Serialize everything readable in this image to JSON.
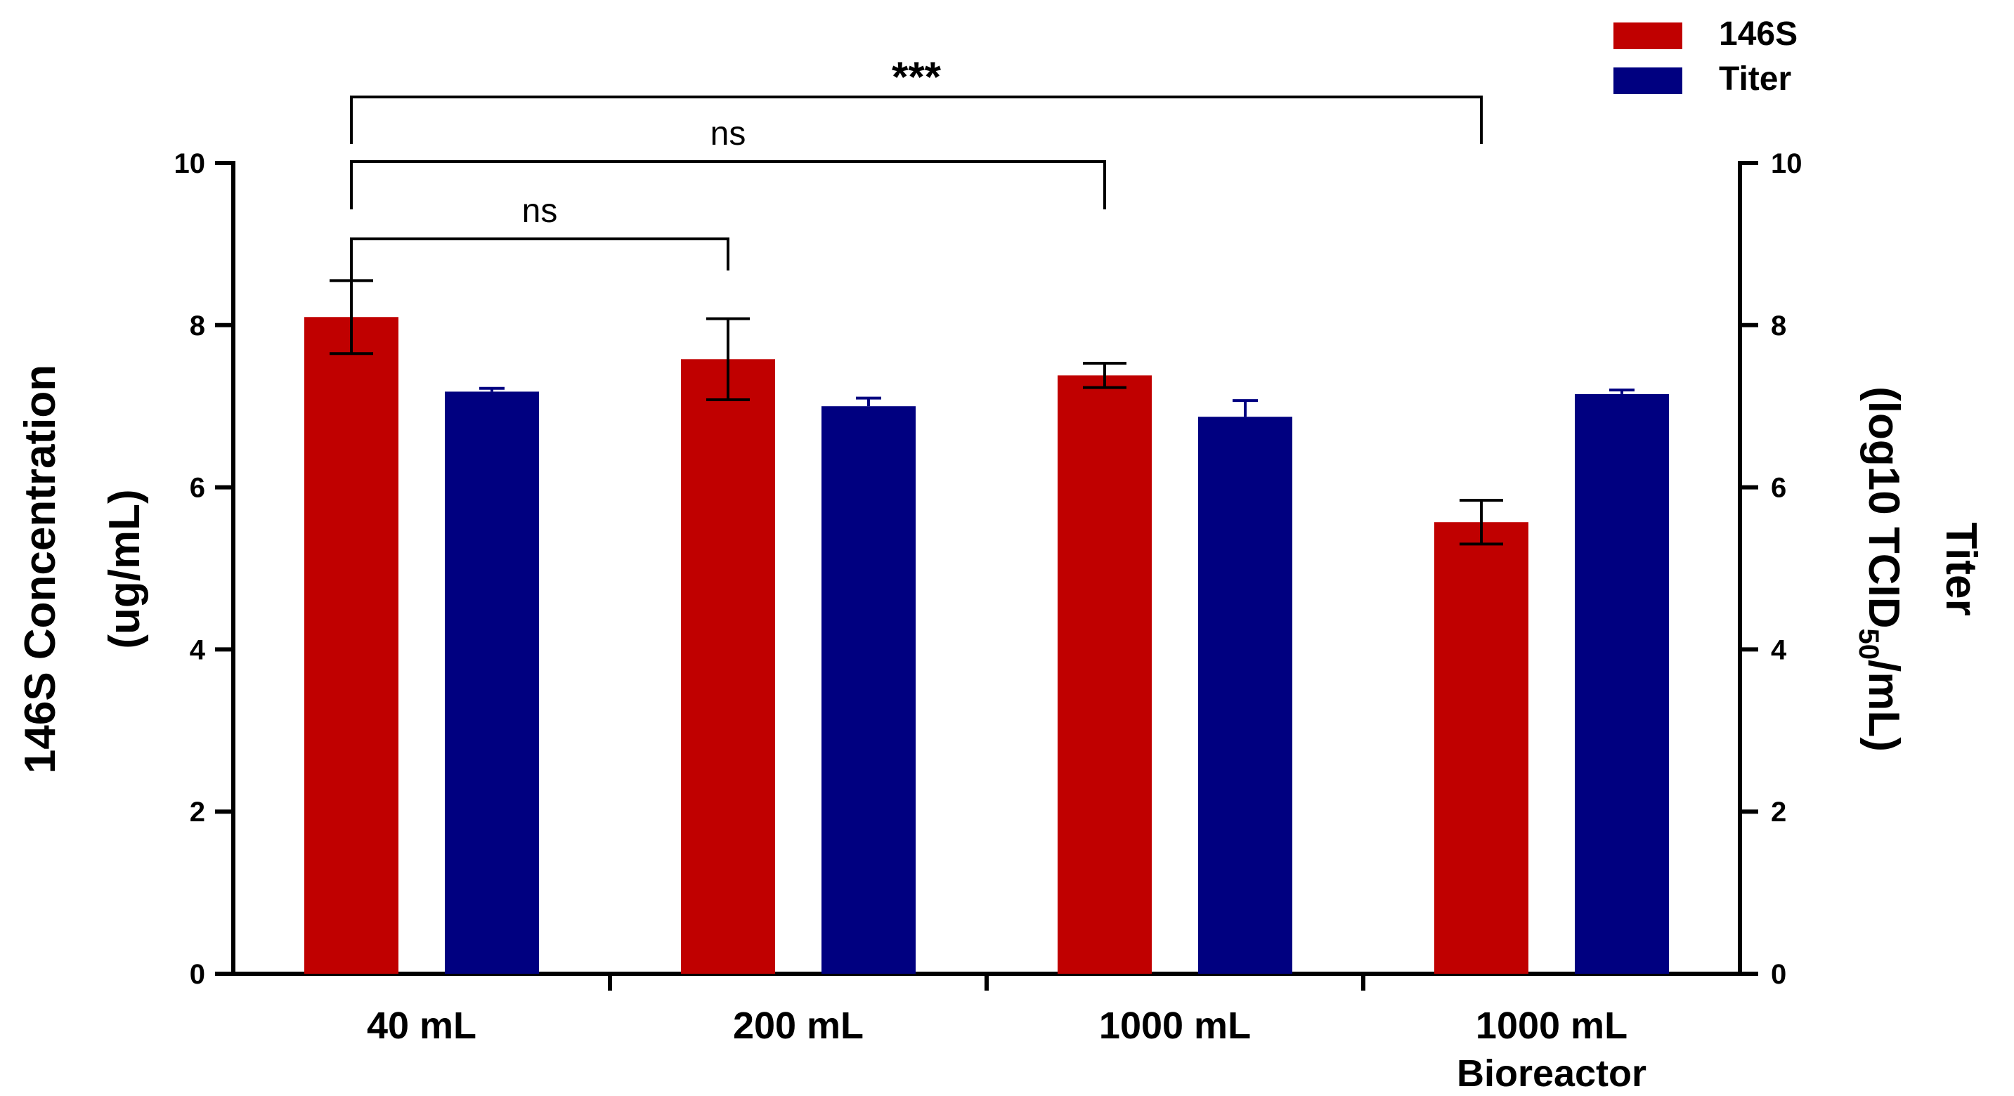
{
  "chart_data": {
    "type": "bar",
    "categories": [
      {
        "line1": "40 mL",
        "line2": ""
      },
      {
        "line1": "200 mL",
        "line2": ""
      },
      {
        "line1": "1000 mL",
        "line2": ""
      },
      {
        "line1": "1000 mL",
        "line2": "Bioreactor"
      }
    ],
    "series": [
      {
        "name": "146S",
        "color": "#c00000",
        "axis": "left",
        "values": [
          8.1,
          7.58,
          7.38,
          5.57
        ],
        "errors": [
          0.45,
          0.5,
          0.15,
          0.27
        ],
        "error_style": "both"
      },
      {
        "name": "Titer",
        "color": "#000080",
        "axis": "right",
        "values": [
          7.18,
          7.0,
          6.87,
          7.15
        ],
        "errors": [
          0.04,
          0.1,
          0.2,
          0.05
        ],
        "error_style": "up"
      }
    ],
    "y_left": {
      "range": [
        0,
        10
      ],
      "ticks": [
        "0",
        "2",
        "4",
        "6",
        "8",
        "10"
      ],
      "title_line1": "146S Concentration",
      "title_line2": "(ug/mL)"
    },
    "y_right": {
      "range": [
        0,
        10
      ],
      "ticks": [
        "0",
        "2",
        "4",
        "6",
        "8",
        "10"
      ],
      "title_line1": "Titer",
      "title_line2_prefix": "(log10 TCID",
      "title_line2_sub": "50",
      "title_line2_suffix": "/mL)"
    },
    "legend": {
      "position": "top-right",
      "entries": [
        "146S",
        "Titer"
      ]
    },
    "significance": [
      {
        "label": "ns",
        "from": 0,
        "to": 1,
        "level": 9.2
      },
      {
        "label": "ns",
        "from": 0,
        "to": 2,
        "level": 10.0
      },
      {
        "label": "***",
        "from": 0,
        "to": 3,
        "level": 10.8
      }
    ]
  }
}
